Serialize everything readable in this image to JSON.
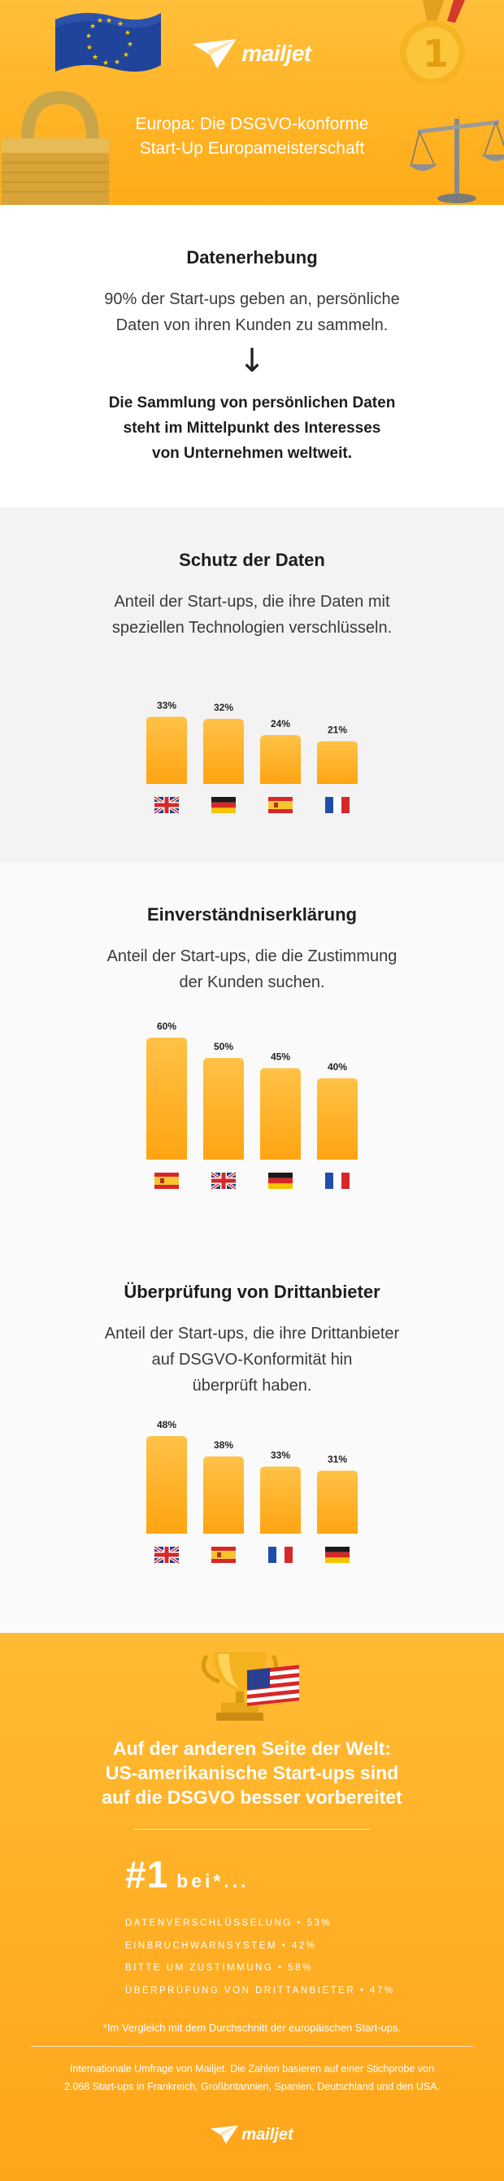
{
  "header": {
    "brand": "mailjet",
    "title_line1": "Europa: Die DSGVO-konforme",
    "title_line2": "Start-Up Europameisterschaft",
    "medal_number": "1"
  },
  "data_collection": {
    "title": "Datenerhebung",
    "text_line1": "90% der Start-ups geben an, persönliche",
    "text_line2": "Daten von ihren Kunden zu sammeln.",
    "arrow": "↓",
    "conclusion_line1": "Die Sammlung von persönlichen Daten",
    "conclusion_line2": "steht im Mittelpunkt des Interesses",
    "conclusion_line3": "von Unternehmen weltweit."
  },
  "colors": {
    "accent": "#ffab17",
    "bar_top": "#ffc247",
    "bar_bottom": "#ffa412",
    "flag_uk_blue": "#1f3d87",
    "flag_red": "#d62828",
    "flag_de_black": "#1a1a1a",
    "flag_de_gold": "#f5c400",
    "flag_es_yellow": "#f7c531",
    "flag_fr_blue": "#1f4ea8"
  },
  "chart_data": [
    {
      "type": "bar",
      "title": "Schutz der Daten",
      "subtitle_line1": "Anteil der Start-ups, die ihre Daten mit",
      "subtitle_line2": "speziellen Technologien verschlüsseln.",
      "categories": [
        "uk",
        "de",
        "es",
        "fr"
      ],
      "values": [
        33,
        32,
        24,
        21
      ],
      "labels": [
        "33%",
        "32%",
        "24%",
        "21%"
      ],
      "ylim": [
        0,
        60
      ]
    },
    {
      "type": "bar",
      "title": "Einverständniserklärung",
      "subtitle_line1": "Anteil der Start-ups, die die Zustimmung",
      "subtitle_line2": "der Kunden suchen.",
      "categories": [
        "es",
        "uk",
        "de",
        "fr"
      ],
      "values": [
        60,
        50,
        45,
        40
      ],
      "labels": [
        "60%",
        "50%",
        "45%",
        "40%"
      ],
      "ylim": [
        0,
        60
      ]
    },
    {
      "type": "bar",
      "title": "Überprüfung von Drittanbieter",
      "subtitle_line1": "Anteil der Start-ups, die ihre Drittanbieter",
      "subtitle_line2": "auf DSGVO-Konformität hin",
      "subtitle_line3": "überprüft haben.",
      "categories": [
        "uk",
        "es",
        "fr",
        "de"
      ],
      "values": [
        48,
        38,
        33,
        31
      ],
      "labels": [
        "48%",
        "38%",
        "33%",
        "31%"
      ],
      "ylim": [
        0,
        60
      ]
    }
  ],
  "footer": {
    "title_line1": "Auf der anderen Seite der Welt:",
    "title_line2": "US-amerikanische Start-ups sind",
    "title_line3": "auf die DSGVO besser vorbereitet",
    "rank": "#1",
    "rank_suffix": "bei*...",
    "items": [
      "Datenverschlüsselung • 53%",
      "Einbruchwarnsystem • 42%",
      "Bitte um Zustimmung • 58%",
      "Überprüfung von Drittanbieter • 47%"
    ],
    "note": "*Im Vergleich mit dem Durchschnitt der europäischen Start-ups.",
    "source_line1": "Internationale Umfrage von Mailjet. Die Zahlen basieren auf einer Stichprobe von",
    "source_line2": "2.068 Start-ups in Frankreich, Großbritannien, Spanien, Deutschland und den USA.",
    "brand": "mailjet"
  }
}
